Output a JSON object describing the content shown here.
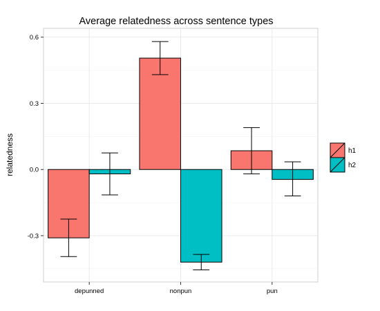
{
  "chart_data": {
    "type": "bar",
    "title": "Average relatedness across sentence types",
    "xlabel": "",
    "ylabel": "relatedness",
    "categories": [
      "depunned",
      "nonpun",
      "pun"
    ],
    "series": [
      {
        "name": "h1",
        "values": [
          -0.31,
          0.505,
          0.085
        ],
        "err_low": [
          -0.395,
          0.43,
          -0.02
        ],
        "err_high": [
          -0.225,
          0.58,
          0.19
        ],
        "color": "#F8766D"
      },
      {
        "name": "h2",
        "values": [
          -0.02,
          -0.42,
          -0.045
        ],
        "err_low": [
          -0.115,
          -0.455,
          -0.12
        ],
        "err_high": [
          0.075,
          -0.385,
          0.035
        ],
        "color": "#00BFC4"
      }
    ],
    "ylim": [
      -0.51,
      0.64
    ],
    "yticks": [
      -0.3,
      0.0,
      0.3,
      0.6
    ],
    "ytick_labels": [
      "-0.3",
      "0.0",
      "0.3",
      "0.6"
    ],
    "grid": true,
    "legend_position": "right"
  }
}
